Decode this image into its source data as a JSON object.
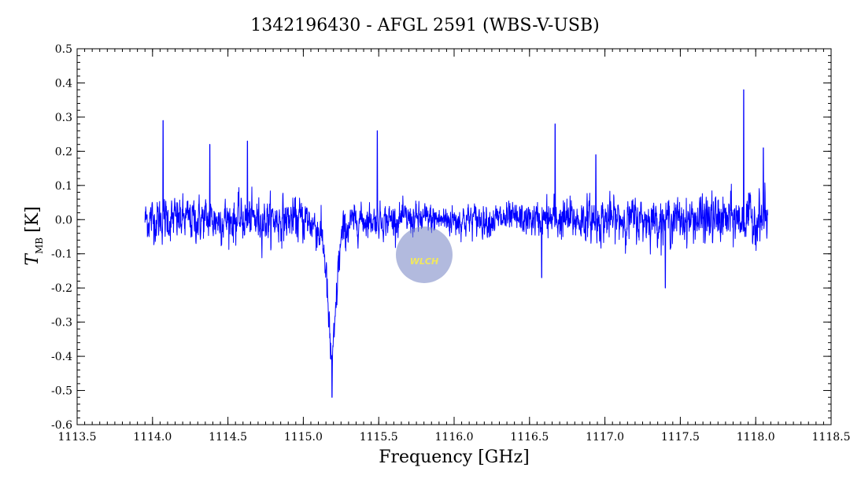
{
  "chart_data": {
    "type": "line",
    "title": "1342196430 - AFGL 2591 (WBS-V-USB)",
    "xlabel": "Frequency [GHz]",
    "ylabel_main": "T",
    "ylabel_sub": "MB",
    "ylabel_unit": "[K]",
    "xlim": [
      1113.5,
      1118.5
    ],
    "ylim": [
      -0.6,
      0.5
    ],
    "xticks": [
      1113.5,
      1114.0,
      1114.5,
      1115.0,
      1115.5,
      1116.0,
      1116.5,
      1117.0,
      1117.5,
      1118.0,
      1118.5
    ],
    "xtick_labels": [
      "1113.5",
      "1114.0",
      "1114.5",
      "1115.0",
      "1115.5",
      "1116.0",
      "1116.5",
      "1117.0",
      "1117.5",
      "1118.0",
      "1118.5"
    ],
    "yticks": [
      -0.6,
      -0.5,
      -0.4,
      -0.3,
      -0.2,
      -0.1,
      0.0,
      0.1,
      0.2,
      0.3,
      0.4,
      0.5
    ],
    "ytick_labels": [
      "-0.6",
      "-0.5",
      "-0.4",
      "-0.3",
      "-0.2",
      "-0.1",
      "0.0",
      "0.1",
      "0.2",
      "0.3",
      "0.4",
      "0.5"
    ],
    "grid": false,
    "color": "#0000ff",
    "x_start": 1113.95,
    "x_end": 1118.08,
    "noise_rms": 0.05,
    "absorption": {
      "center": 1115.19,
      "depth": -0.33,
      "width": 0.035,
      "wing_depth": -0.08,
      "wing_width": 0.09
    },
    "spikes": [
      {
        "x": 1114.07,
        "y": 0.29
      },
      {
        "x": 1114.38,
        "y": 0.22
      },
      {
        "x": 1114.63,
        "y": 0.23
      },
      {
        "x": 1115.49,
        "y": 0.26
      },
      {
        "x": 1116.67,
        "y": 0.28
      },
      {
        "x": 1116.94,
        "y": 0.19
      },
      {
        "x": 1117.92,
        "y": 0.38
      },
      {
        "x": 1118.05,
        "y": 0.21
      },
      {
        "x": 1115.19,
        "y": -0.52
      },
      {
        "x": 1116.58,
        "y": -0.17
      },
      {
        "x": 1117.4,
        "y": -0.2
      }
    ],
    "logo_text": "WLCH",
    "logo_color": "#7f8cc8"
  }
}
